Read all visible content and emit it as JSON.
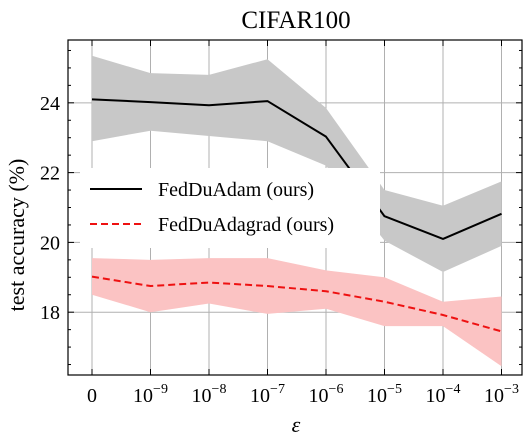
{
  "chart_data": {
    "type": "line",
    "title": "CIFAR100",
    "xlabel": "ε",
    "ylabel": "test accuracy (%)",
    "categories": [
      "0",
      "10^-9",
      "10^-8",
      "10^-7",
      "10^-6",
      "10^-5",
      "10^-4",
      "10^-3"
    ],
    "x_tick_labels": [
      {
        "base": "0",
        "exp": ""
      },
      {
        "base": "10",
        "exp": "−9"
      },
      {
        "base": "10",
        "exp": "−8"
      },
      {
        "base": "10",
        "exp": "−7"
      },
      {
        "base": "10",
        "exp": "−6"
      },
      {
        "base": "10",
        "exp": "−5"
      },
      {
        "base": "10",
        "exp": "−4"
      },
      {
        "base": "10",
        "exp": "−3"
      }
    ],
    "ylim": [
      16.2,
      25.8
    ],
    "yticks": [
      18,
      20,
      22,
      24
    ],
    "grid": true,
    "legend_position": "center-left",
    "series": [
      {
        "name": "FedDuAdam (ours)",
        "color": "#000000",
        "dash": "solid",
        "band_color": "#c8c8c8",
        "values": [
          24.1,
          24.02,
          23.93,
          24.05,
          23.03,
          20.75,
          20.1,
          20.82
        ],
        "lower": [
          22.9,
          23.2,
          23.05,
          22.9,
          22.2,
          20.05,
          19.15,
          19.9
        ],
        "upper": [
          25.35,
          24.85,
          24.8,
          25.25,
          23.85,
          21.5,
          21.05,
          21.75
        ]
      },
      {
        "name": "FedDuAdagrad (ours)",
        "color": "#ee1111",
        "dash": "dashed",
        "band_color": "#fbc3c3",
        "values": [
          19.02,
          18.75,
          18.85,
          18.75,
          18.6,
          18.3,
          17.92,
          17.45
        ],
        "lower": [
          18.5,
          18.0,
          18.25,
          17.95,
          18.1,
          17.6,
          17.6,
          16.45
        ],
        "upper": [
          19.55,
          19.5,
          19.55,
          19.55,
          19.2,
          19.0,
          18.3,
          18.45
        ]
      }
    ]
  }
}
